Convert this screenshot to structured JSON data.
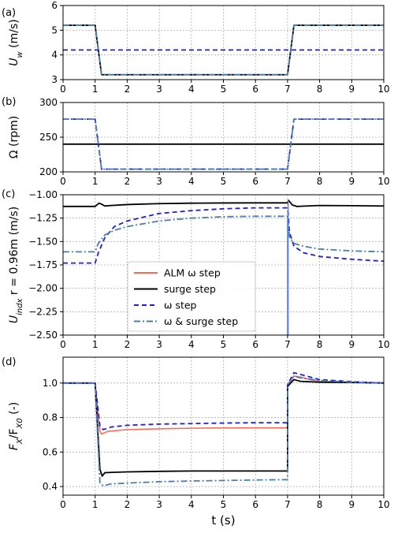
{
  "chart_data": [
    {
      "type": "line",
      "panel_label": "(a)",
      "ylabel_main": "U",
      "ylabel_sub": "w",
      "ylabel_unit": " (m/s)",
      "xlim": [
        0,
        10
      ],
      "ylim": [
        3,
        6
      ],
      "yticks": [
        3,
        4,
        5,
        6
      ],
      "ytick_labels": [
        "3",
        "4",
        "5",
        "6"
      ],
      "grid": true,
      "series": [
        {
          "key": "surge",
          "color": "#000000",
          "dash": "",
          "width": 1.8,
          "x": [
            0,
            1,
            1.2,
            7,
            7.2,
            10
          ],
          "y": [
            5.2,
            5.2,
            3.2,
            3.2,
            5.2,
            5.2
          ]
        },
        {
          "key": "omega",
          "color": "#1f1fd6",
          "dash": "6,4",
          "width": 1.8,
          "x": [
            0,
            10
          ],
          "y": [
            4.2,
            4.2
          ]
        },
        {
          "key": "omega_surge",
          "color": "#4a7fb0",
          "dash": "8,3,2,3",
          "width": 1.8,
          "x": [
            0,
            1,
            1.2,
            7,
            7.2,
            10
          ],
          "y": [
            5.2,
            5.2,
            3.2,
            3.2,
            5.2,
            5.2
          ]
        }
      ]
    },
    {
      "type": "line",
      "panel_label": "(b)",
      "ylabel_main": "Ω (rpm)",
      "ylabel_sub": "",
      "ylabel_unit": "",
      "xlim": [
        0,
        10
      ],
      "ylim": [
        200,
        300
      ],
      "yticks": [
        200,
        250,
        300
      ],
      "ytick_labels": [
        "200",
        "250",
        "300"
      ],
      "grid": true,
      "series": [
        {
          "key": "surge",
          "color": "#000000",
          "dash": "",
          "width": 1.8,
          "x": [
            0,
            10
          ],
          "y": [
            240,
            240
          ]
        },
        {
          "key": "omega",
          "color": "#1f1fd6",
          "dash": "6,4",
          "width": 1.8,
          "x": [
            0,
            1,
            1.2,
            7,
            7.2,
            10
          ],
          "y": [
            276,
            276,
            204,
            204,
            276,
            276
          ]
        },
        {
          "key": "omega_surge",
          "color": "#4a7fb0",
          "dash": "8,3,2,3",
          "width": 1.8,
          "x": [
            0,
            1,
            1.2,
            7,
            7.2,
            10
          ],
          "y": [
            276,
            276,
            204,
            204,
            276,
            276
          ]
        }
      ]
    },
    {
      "type": "line",
      "panel_label": "(c)",
      "ylabel_main": "U",
      "ylabel_sub": "indx",
      "ylabel_unit": " r = 0.96m (m/s)",
      "xlim": [
        0,
        10
      ],
      "ylim": [
        -2.5,
        -1.0
      ],
      "yticks": [
        -2.5,
        -2.25,
        -2.0,
        -1.75,
        -1.5,
        -1.25,
        -1.0
      ],
      "ytick_labels": [
        "−2.50",
        "−2.25",
        "−2.00",
        "−1.75",
        "−1.50",
        "−1.25",
        "−1.00"
      ],
      "grid": true,
      "series": [
        {
          "key": "surge",
          "color": "#000000",
          "dash": "",
          "width": 1.8,
          "x": [
            0,
            1.0,
            1.05,
            1.12,
            1.2,
            1.3,
            1.5,
            2,
            3,
            4,
            5,
            6,
            7.0,
            7.03,
            7.08,
            7.15,
            7.3,
            7.6,
            8,
            9,
            10
          ],
          "y": [
            -1.125,
            -1.125,
            -1.11,
            -1.09,
            -1.1,
            -1.12,
            -1.115,
            -1.105,
            -1.095,
            -1.09,
            -1.088,
            -1.087,
            -1.087,
            -1.06,
            -1.08,
            -1.11,
            -1.125,
            -1.12,
            -1.115,
            -1.117,
            -1.12
          ]
        },
        {
          "key": "omega",
          "color": "#1f1fd6",
          "dash": "6,4",
          "width": 1.8,
          "x": [
            0,
            1.0,
            1.1,
            1.3,
            1.6,
            2,
            3,
            4,
            5,
            6,
            7.0,
            7.02,
            7.06,
            7.2,
            7.5,
            8,
            9,
            10
          ],
          "y": [
            -1.73,
            -1.73,
            -1.62,
            -1.46,
            -1.34,
            -1.28,
            -1.2,
            -1.17,
            -1.15,
            -1.14,
            -1.14,
            -1.2,
            -1.4,
            -1.55,
            -1.62,
            -1.66,
            -1.69,
            -1.71
          ]
        },
        {
          "key": "omega_surge",
          "color": "#4a7fb0",
          "dash": "8,3,2,3",
          "width": 1.8,
          "x": [
            0,
            1.0,
            1.1,
            1.3,
            1.6,
            2,
            3,
            4,
            5,
            6,
            7.0,
            7.02,
            7.06,
            7.2,
            7.5,
            8,
            9,
            10
          ],
          "y": [
            -1.61,
            -1.61,
            -1.52,
            -1.43,
            -1.38,
            -1.34,
            -1.28,
            -1.25,
            -1.235,
            -1.23,
            -1.23,
            -1.3,
            -1.45,
            -1.52,
            -1.55,
            -1.58,
            -1.6,
            -1.61
          ]
        },
        {
          "key": "alm",
          "color": "#4f7fe0",
          "dash": "",
          "width": 1.3,
          "x": [
            7.0,
            7.0,
            7.02,
            7.02
          ],
          "y": [
            -1.23,
            -2.5,
            -2.5,
            -1.05
          ]
        }
      ],
      "legend": {
        "placement": "lower-center",
        "entries": [
          {
            "label": "ALM ω step",
            "key": "alm_legend",
            "color": "#f26d5b",
            "dash": ""
          },
          {
            "label": "surge step",
            "key": "surge",
            "color": "#000000",
            "dash": ""
          },
          {
            "label": "ω step",
            "key": "omega",
            "color": "#1f1fd6",
            "dash": "6,4"
          },
          {
            "label": "ω & surge step",
            "key": "omega_surge",
            "color": "#4a7fb0",
            "dash": "8,3,2,3"
          }
        ]
      }
    },
    {
      "type": "line",
      "panel_label": "(d)",
      "ylabel_main": "F",
      "ylabel_sub": "X",
      "ylabel_unit": "/F",
      "ylabel_sub2": "X0",
      "ylabel_tail": " (-)",
      "xlim": [
        0,
        10
      ],
      "ylim": [
        0.35,
        1.15
      ],
      "yticks": [
        0.4,
        0.6,
        0.8,
        1.0
      ],
      "ytick_labels": [
        "0.4",
        "0.6",
        "0.8",
        "1.0"
      ],
      "grid": true,
      "series": [
        {
          "key": "alm",
          "color": "#f26d5b",
          "dash": "",
          "width": 1.6,
          "x": [
            0,
            1.0,
            1.15,
            1.2,
            1.4,
            2,
            3,
            4,
            5,
            6,
            7.0,
            7.0,
            7.2,
            7.4,
            7.7,
            8,
            9,
            10
          ],
          "y": [
            1.0,
            1.0,
            0.72,
            0.705,
            0.72,
            0.73,
            0.735,
            0.738,
            0.74,
            0.74,
            0.74,
            0.98,
            1.04,
            1.035,
            1.02,
            1.01,
            1.005,
            1.0
          ]
        },
        {
          "key": "surge",
          "color": "#000000",
          "dash": "",
          "width": 1.8,
          "x": [
            0,
            1.0,
            1.15,
            1.22,
            1.3,
            1.5,
            2,
            3,
            4,
            5,
            6,
            7.0,
            7.0,
            7.2,
            7.4,
            8,
            9,
            10
          ],
          "y": [
            1.0,
            1.0,
            0.5,
            0.46,
            0.48,
            0.482,
            0.485,
            0.488,
            0.49,
            0.49,
            0.49,
            0.49,
            0.98,
            1.02,
            1.01,
            1.005,
            1.003,
            1.0
          ]
        },
        {
          "key": "omega",
          "color": "#1f1fd6",
          "dash": "6,4",
          "width": 1.8,
          "x": [
            0,
            1.0,
            1.15,
            1.25,
            1.5,
            2,
            3,
            4,
            5,
            6,
            7.0,
            7.0,
            7.2,
            7.4,
            7.7,
            8,
            9,
            10
          ],
          "y": [
            1.0,
            1.0,
            0.75,
            0.73,
            0.745,
            0.755,
            0.762,
            0.765,
            0.768,
            0.77,
            0.77,
            0.99,
            1.06,
            1.05,
            1.035,
            1.02,
            1.008,
            1.0
          ]
        },
        {
          "key": "omega_surge",
          "color": "#4a7fb0",
          "dash": "8,3,2,3",
          "width": 1.8,
          "x": [
            0,
            1.0,
            1.15,
            1.25,
            1.5,
            2,
            3,
            4,
            5,
            6,
            7.0,
            7.0,
            7.2,
            7.4,
            8,
            9,
            10
          ],
          "y": [
            1.0,
            1.0,
            0.42,
            0.405,
            0.415,
            0.42,
            0.428,
            0.432,
            0.435,
            0.438,
            0.44,
            0.99,
            1.04,
            1.03,
            1.015,
            1.005,
            1.0
          ]
        }
      ]
    }
  ],
  "xaxis": {
    "label": "t (s)",
    "ticks": [
      0,
      1,
      2,
      3,
      4,
      5,
      6,
      7,
      8,
      9,
      10
    ],
    "tick_labels": [
      "0",
      "1",
      "2",
      "3",
      "4",
      "5",
      "6",
      "7",
      "8",
      "9",
      "10"
    ]
  }
}
